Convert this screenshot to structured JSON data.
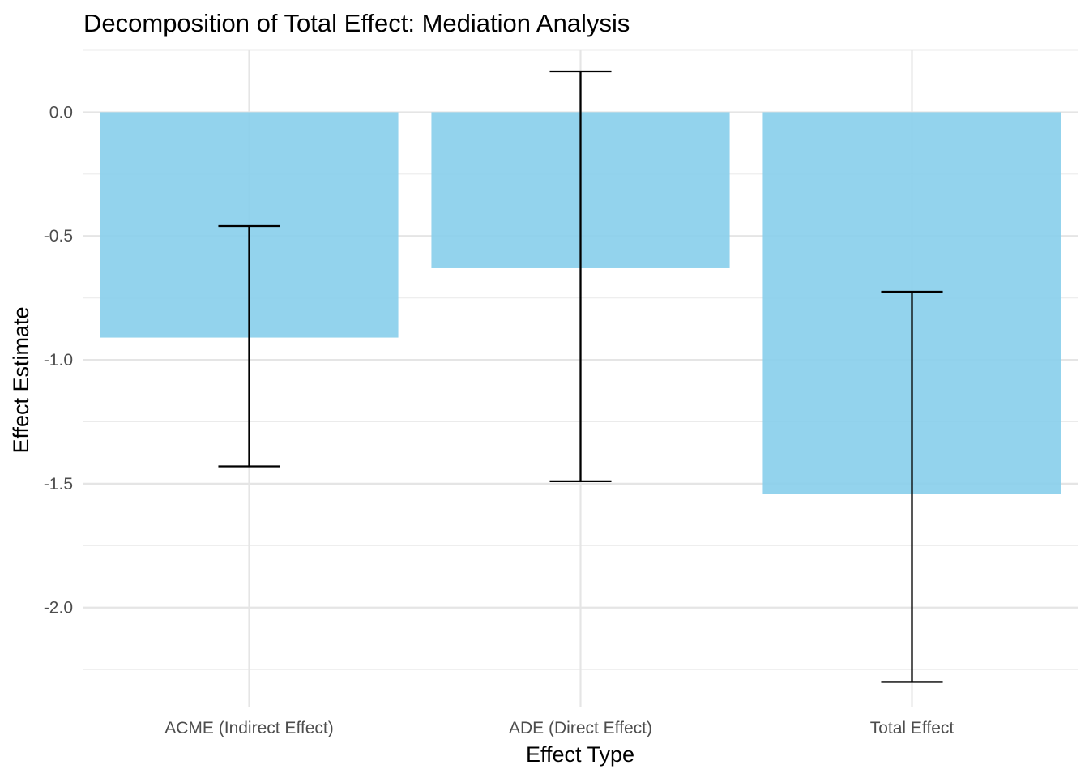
{
  "chart_data": {
    "type": "bar",
    "title": "Decomposition of Total Effect: Mediation Analysis",
    "xlabel": "Effect Type",
    "ylabel": "Effect Estimate",
    "categories": [
      "ACME (Indirect Effect)",
      "ADE (Direct Effect)",
      "Total Effect"
    ],
    "values": [
      -0.91,
      -0.63,
      -1.54
    ],
    "ci_lower": [
      -1.43,
      -1.49,
      -2.3
    ],
    "ci_upper": [
      -0.46,
      0.165,
      -0.725
    ],
    "ylim": [
      -2.4,
      0.25
    ],
    "yticks": [
      0.0,
      -0.5,
      -1.0,
      -1.5,
      -2.0
    ],
    "ytick_labels": [
      "0.0",
      "-0.5",
      "-1.0",
      "-1.5",
      "-2.0"
    ],
    "bar_color": "#87CEEB",
    "errorbar_color": "#000000",
    "grid": true,
    "legend": "none"
  }
}
